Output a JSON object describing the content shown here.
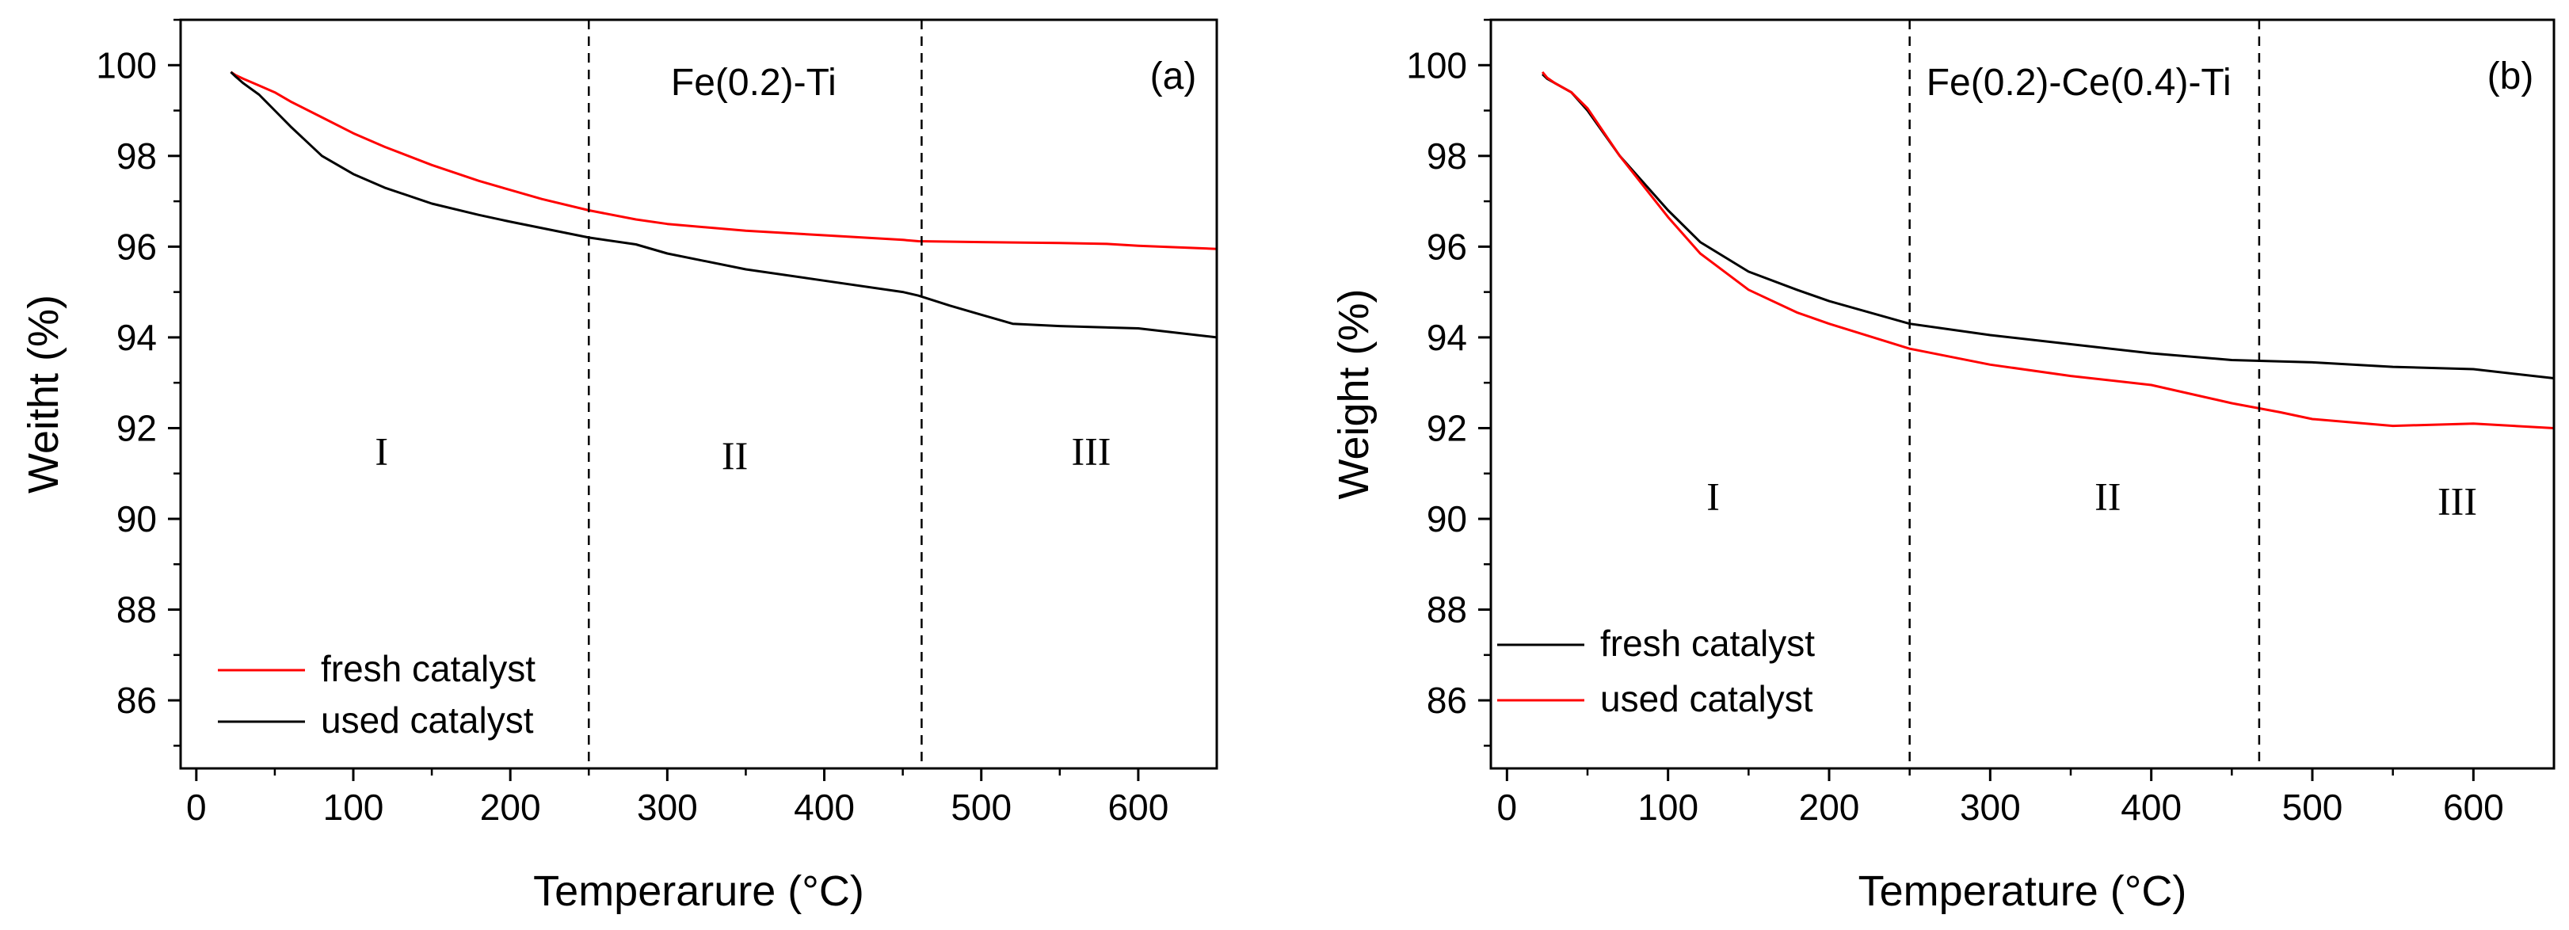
{
  "chart_data": [
    {
      "type": "line",
      "panel_label": "(a)",
      "title": "Fe(0.2)-Ti",
      "xlabel": "Temperarure (°C)",
      "ylabel": "Weitht (%)",
      "xlim": [
        -10,
        650
      ],
      "ylim": [
        84.5,
        101
      ],
      "xticks": [
        0,
        100,
        200,
        300,
        400,
        500,
        600
      ],
      "yticks": [
        86,
        88,
        90,
        92,
        94,
        96,
        98,
        100
      ],
      "dividers": [
        250,
        462
      ],
      "regions": [
        {
          "label": "I",
          "x": 118,
          "y": 91.2
        },
        {
          "label": "II",
          "x": 343,
          "y": 91.1
        },
        {
          "label": "III",
          "x": 570,
          "y": 91.2
        }
      ],
      "legend_position": "bottom-left",
      "series": [
        {
          "name": "fresh catalyst",
          "color": "#ff0000",
          "x": [
            22,
            25,
            30,
            40,
            50,
            60,
            80,
            100,
            120,
            150,
            180,
            200,
            220,
            250,
            280,
            300,
            350,
            400,
            450,
            460,
            500,
            550,
            580,
            600,
            650
          ],
          "y": [
            99.85,
            99.78,
            99.7,
            99.55,
            99.4,
            99.2,
            98.85,
            98.5,
            98.2,
            97.8,
            97.45,
            97.25,
            97.05,
            96.8,
            96.6,
            96.5,
            96.35,
            96.25,
            96.15,
            96.12,
            96.1,
            96.08,
            96.06,
            96.02,
            95.95
          ]
        },
        {
          "name": "used catalyst",
          "color": "#000000",
          "x": [
            22,
            25,
            30,
            40,
            50,
            60,
            80,
            100,
            120,
            150,
            180,
            200,
            250,
            280,
            300,
            350,
            400,
            450,
            460,
            480,
            500,
            520,
            550,
            600,
            650
          ],
          "y": [
            99.85,
            99.75,
            99.6,
            99.35,
            99.0,
            98.65,
            98.0,
            97.6,
            97.3,
            96.95,
            96.7,
            96.55,
            96.2,
            96.05,
            95.85,
            95.5,
            95.25,
            95.0,
            94.92,
            94.7,
            94.5,
            94.3,
            94.25,
            94.2,
            94.0
          ]
        }
      ]
    },
    {
      "type": "line",
      "panel_label": "(b)",
      "title": "Fe(0.2)-Ce(0.4)-Ti",
      "xlabel": "Temperature (°C)",
      "ylabel": "Weight (%)",
      "xlim": [
        -10,
        650
      ],
      "ylim": [
        84.5,
        101
      ],
      "xticks": [
        0,
        100,
        200,
        300,
        400,
        500,
        600
      ],
      "yticks": [
        86,
        88,
        90,
        92,
        94,
        96,
        98,
        100
      ],
      "dividers": [
        250,
        467
      ],
      "regions": [
        {
          "label": "I",
          "x": 128,
          "y": 90.2
        },
        {
          "label": "II",
          "x": 373,
          "y": 90.2
        },
        {
          "label": "III",
          "x": 590,
          "y": 90.1
        }
      ],
      "legend_position": "bottom-left",
      "series": [
        {
          "name": "fresh catalyst",
          "color": "#000000",
          "x": [
            22,
            25,
            30,
            40,
            50,
            70,
            100,
            120,
            150,
            180,
            200,
            250,
            300,
            350,
            400,
            450,
            500,
            550,
            600,
            650
          ],
          "y": [
            99.8,
            99.7,
            99.6,
            99.4,
            99.0,
            98.0,
            96.8,
            96.1,
            95.45,
            95.05,
            94.8,
            94.3,
            94.05,
            93.85,
            93.65,
            93.5,
            93.45,
            93.35,
            93.3,
            93.1
          ]
        },
        {
          "name": "used catalyst",
          "color": "#ff0000",
          "x": [
            22,
            25,
            30,
            40,
            50,
            70,
            100,
            120,
            150,
            180,
            200,
            250,
            300,
            350,
            400,
            450,
            480,
            500,
            550,
            600,
            650
          ],
          "y": [
            99.85,
            99.72,
            99.6,
            99.4,
            99.05,
            98.0,
            96.65,
            95.85,
            95.05,
            94.55,
            94.3,
            93.75,
            93.4,
            93.15,
            92.95,
            92.55,
            92.35,
            92.2,
            92.05,
            92.1,
            92.0
          ]
        }
      ]
    }
  ]
}
